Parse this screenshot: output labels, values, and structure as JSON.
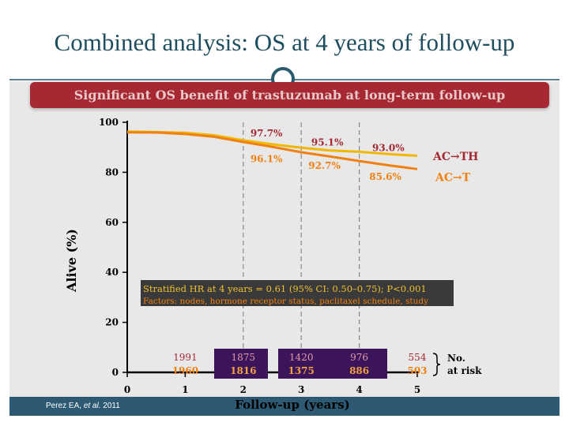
{
  "title": "Combined analysis: OS at 4 years of follow-up",
  "banner": "Significant OS benefit of trastuzumab at long-term follow-up",
  "citation": {
    "author": "Perez EA,",
    "etal": "et al.",
    "year": "2011"
  },
  "colors": {
    "ACTH": "#f0b800",
    "ACT": "#f08010",
    "ACTH_label": "#a52832",
    "ACT_label": "#f08010",
    "stats_box": "#3a3a3a",
    "risk_box": "#3c145a"
  },
  "chart_data": {
    "type": "line",
    "xlabel": "Follow-up (years)",
    "ylabel": "Alive (%)",
    "xlim": [
      0,
      5
    ],
    "ylim": [
      0,
      100
    ],
    "xticks": [
      0,
      1,
      2,
      3,
      4,
      5
    ],
    "yticks": [
      0,
      20,
      40,
      60,
      80,
      100
    ],
    "series": [
      {
        "name": "AC→TH",
        "x": [
          0,
          0.5,
          1,
          1.5,
          2,
          2.5,
          3,
          3.5,
          4,
          4.5,
          5
        ],
        "y": [
          96.3,
          96.1,
          95.8,
          94.8,
          92.8,
          91.2,
          89.8,
          88.7,
          88.2,
          87.3,
          86.6
        ]
      },
      {
        "name": "AC→T",
        "x": [
          0,
          0.5,
          1,
          1.5,
          2,
          2.5,
          3,
          3.5,
          4,
          4.5,
          5
        ],
        "y": [
          96.0,
          95.9,
          95.3,
          94.2,
          92.1,
          90.2,
          88.0,
          86.3,
          84.5,
          82.8,
          81.3
        ]
      }
    ],
    "annotations": [
      {
        "text": "97.7%",
        "series": "AC→TH",
        "x": 2.4,
        "y": 95.6
      },
      {
        "text": "96.1%",
        "series": "AC→T",
        "x": 2.4,
        "y": 85.3
      },
      {
        "text": "95.1%",
        "series": "AC→TH",
        "x": 3.45,
        "y": 92.0
      },
      {
        "text": "92.7%",
        "series": "AC→T",
        "x": 3.4,
        "y": 82.6
      },
      {
        "text": "93.0%",
        "series": "AC→TH",
        "x": 4.5,
        "y": 89.8
      },
      {
        "text": "85.6%",
        "series": "AC→T",
        "x": 4.45,
        "y": 78.2
      }
    ],
    "reference_lines_x": [
      2,
      3,
      4
    ],
    "legend": [
      {
        "text": "AC→TH",
        "series": "AC→TH"
      },
      {
        "text": "AC→T",
        "series": "AC→T"
      }
    ],
    "stats_box": {
      "line1": "Stratified HR at 4 years = 0.61 (95% CI: 0.50–0.75); P<0.001",
      "line2": "Factors: nodes, hormone receptor status, paclitaxel schedule, study"
    },
    "number_at_risk": {
      "label_line1": "No.",
      "label_line2": "at risk",
      "AC→TH": [
        "1991",
        "1875",
        "1420",
        "976",
        "554"
      ],
      "AC→T": [
        "1960",
        "1816",
        "1375",
        "886",
        "503"
      ],
      "years": [
        1,
        2,
        3,
        4,
        5
      ]
    }
  }
}
